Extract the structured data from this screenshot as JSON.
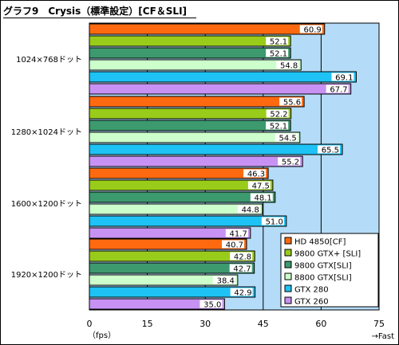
{
  "title": "グラフ9　Crysis（標準設定）[CF＆SLI]",
  "colors": {
    "plot_background": "#b4dcf8",
    "gridline": "#000000",
    "value_label_bg": "#ffffff"
  },
  "chart_data": {
    "type": "bar",
    "orientation": "horizontal",
    "title": "グラフ9　Crysis（標準設定）[CF＆SLI]",
    "categories": [
      "1024×768ドット",
      "1280×1024ドット",
      "1600×1200ドット",
      "1920×1200ドット"
    ],
    "series": [
      {
        "name": "HD 4850[CF]",
        "color": "#ff6a10",
        "values": [
          60.9,
          55.6,
          46.3,
          40.7
        ]
      },
      {
        "name": "9800 GTX+ [SLI]",
        "color": "#99cc1a",
        "values": [
          52.1,
          52.2,
          47.5,
          42.8
        ]
      },
      {
        "name": "9800 GTX[SLI]",
        "color": "#3c9a6e",
        "values": [
          52.1,
          52.1,
          48.1,
          42.7
        ]
      },
      {
        "name": "8800 GTX[SLI]",
        "color": "#ccffcc",
        "values": [
          54.8,
          54.5,
          44.8,
          38.4
        ]
      },
      {
        "name": "GTX 280",
        "color": "#1ec2f4",
        "values": [
          69.1,
          65.5,
          51.0,
          42.9
        ]
      },
      {
        "name": "GTX 260",
        "color": "#c892f4",
        "values": [
          67.7,
          55.2,
          41.7,
          35.0
        ]
      }
    ],
    "value_labels": [
      [
        "60.9",
        "52.1",
        "52.1",
        "54.8",
        "69.1",
        "67.7"
      ],
      [
        "55.6",
        "52.2",
        "52.1",
        "54.5",
        "65.5",
        "55.2"
      ],
      [
        "46.3",
        "47.5",
        "48.1",
        "44.8",
        "51.0",
        "41.7"
      ],
      [
        "40.7",
        "42.8",
        "42.7",
        "38.4",
        "42.9",
        "35.0"
      ]
    ],
    "xlim": [
      0,
      75
    ],
    "xticks": [
      "0",
      "15",
      "30",
      "45",
      "60",
      "75"
    ],
    "xlabel": "（fps）",
    "x_direction_note": "→Fast",
    "grid": true,
    "legend_placement": "bottom-right",
    "legend": [
      "HD 4850[CF]",
      "9800 GTX+ [SLI]",
      "9800 GTX[SLI]",
      "8800 GTX[SLI]",
      "GTX 280",
      "GTX 260"
    ]
  }
}
